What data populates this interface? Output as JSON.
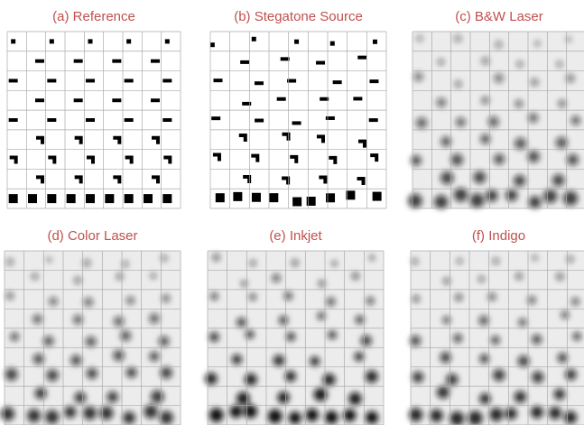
{
  "panels": [
    {
      "label": "(a) Reference"
    },
    {
      "label": "(b) Stegatone Source"
    },
    {
      "label": "(c) B&W Laser"
    },
    {
      "label": "(d) Color Laser"
    },
    {
      "label": "(e) Inkjet"
    },
    {
      "label": "(f) Indigo"
    }
  ]
}
